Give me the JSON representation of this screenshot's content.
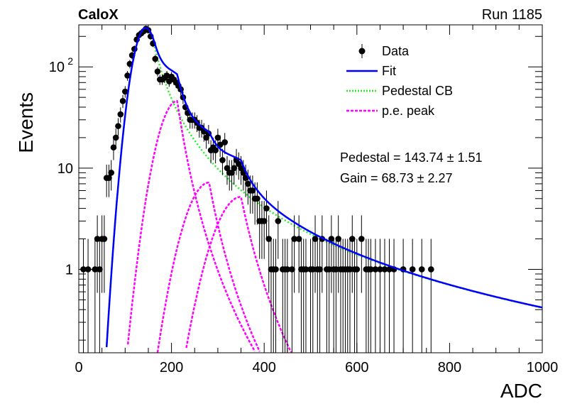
{
  "header": {
    "left": "CaloX",
    "right": "Run 1185"
  },
  "chart_data": {
    "type": "scatter",
    "xlabel": "ADC",
    "ylabel": "Events",
    "xlim": [
      0,
      1000
    ],
    "ylim": [
      0.15,
      260
    ],
    "yscale": "log",
    "x_ticks": [
      0,
      200,
      400,
      600,
      800,
      1000
    ],
    "y_ticks": [
      {
        "value": 1,
        "label": "1"
      },
      {
        "value": 10,
        "label": "10"
      },
      {
        "value": 100,
        "label": "10",
        "sup": "2"
      }
    ],
    "legend": {
      "placement": "top-right",
      "entries": [
        {
          "label": "Data",
          "style": "marker",
          "color": "#000000"
        },
        {
          "label": "Fit",
          "style": "solid",
          "color": "#0000ff"
        },
        {
          "label": "Pedestal CB",
          "style": "dotted",
          "color": "#22ee22"
        },
        {
          "label": "p.e. peak",
          "style": "dashed",
          "color": "#ff00ff"
        }
      ]
    },
    "annotations": [
      "Pedestal = 143.74 ± 1.51",
      "Gain = 68.73 ± 2.27"
    ],
    "fit_params": {
      "pedestal": 143.74,
      "pedestal_err": 1.51,
      "gain": 68.73,
      "gain_err": 2.27
    },
    "series": [
      {
        "name": "Data",
        "kind": "points",
        "color": "#000000",
        "x": [
          10,
          20,
          35,
          40,
          45,
          50,
          55,
          60,
          65,
          70,
          75,
          80,
          85,
          90,
          95,
          100,
          105,
          110,
          115,
          120,
          125,
          130,
          135,
          140,
          145,
          150,
          155,
          160,
          165,
          170,
          175,
          180,
          185,
          190,
          195,
          200,
          205,
          210,
          215,
          220,
          225,
          230,
          235,
          240,
          245,
          250,
          255,
          260,
          265,
          270,
          275,
          280,
          285,
          290,
          295,
          300,
          305,
          310,
          315,
          320,
          325,
          330,
          335,
          340,
          345,
          350,
          355,
          360,
          365,
          370,
          375,
          380,
          385,
          390,
          395,
          400,
          405,
          410,
          415,
          420,
          425,
          430,
          440,
          445,
          450,
          460,
          465,
          475,
          480,
          485,
          490,
          500,
          505,
          510,
          515,
          520,
          525,
          535,
          540,
          545,
          550,
          555,
          560,
          565,
          570,
          575,
          580,
          585,
          590,
          595,
          600,
          610,
          620,
          625,
          630,
          640,
          650,
          660,
          670,
          680,
          700,
          720,
          740,
          760
        ],
        "y": [
          1,
          1,
          1,
          2,
          1,
          2,
          2,
          8,
          8,
          9,
          16,
          20,
          26,
          34,
          46,
          57,
          82,
          107,
          130,
          150,
          186,
          206,
          215,
          225,
          238,
          230,
          200,
          170,
          120,
          90,
          75,
          75,
          78,
          82,
          72,
          80,
          75,
          70,
          65,
          60,
          50,
          40,
          35,
          30,
          30,
          30,
          28,
          25,
          25,
          23,
          20,
          22,
          15,
          16,
          15,
          20,
          17,
          12,
          18,
          10,
          9,
          9,
          10,
          12,
          11,
          10,
          9,
          8,
          7,
          6,
          6,
          5,
          5,
          3,
          3,
          3,
          4,
          2,
          1,
          1,
          1,
          3,
          1,
          1,
          1,
          1,
          2,
          2,
          1,
          1,
          1,
          1,
          1,
          2,
          1,
          1,
          2,
          1,
          1,
          2,
          1,
          1,
          2,
          1,
          1,
          1,
          1,
          1,
          2,
          1,
          1,
          2,
          1,
          1,
          1,
          1,
          1,
          1,
          1,
          1,
          1,
          1,
          1,
          1
        ]
      },
      {
        "name": "Fit",
        "kind": "curve",
        "color": "#0000ff"
      },
      {
        "name": "Pedestal CB",
        "kind": "curve",
        "color": "#22ee22"
      },
      {
        "name": "p.e. peak",
        "kind": "curve",
        "color": "#ff00ff"
      }
    ]
  }
}
